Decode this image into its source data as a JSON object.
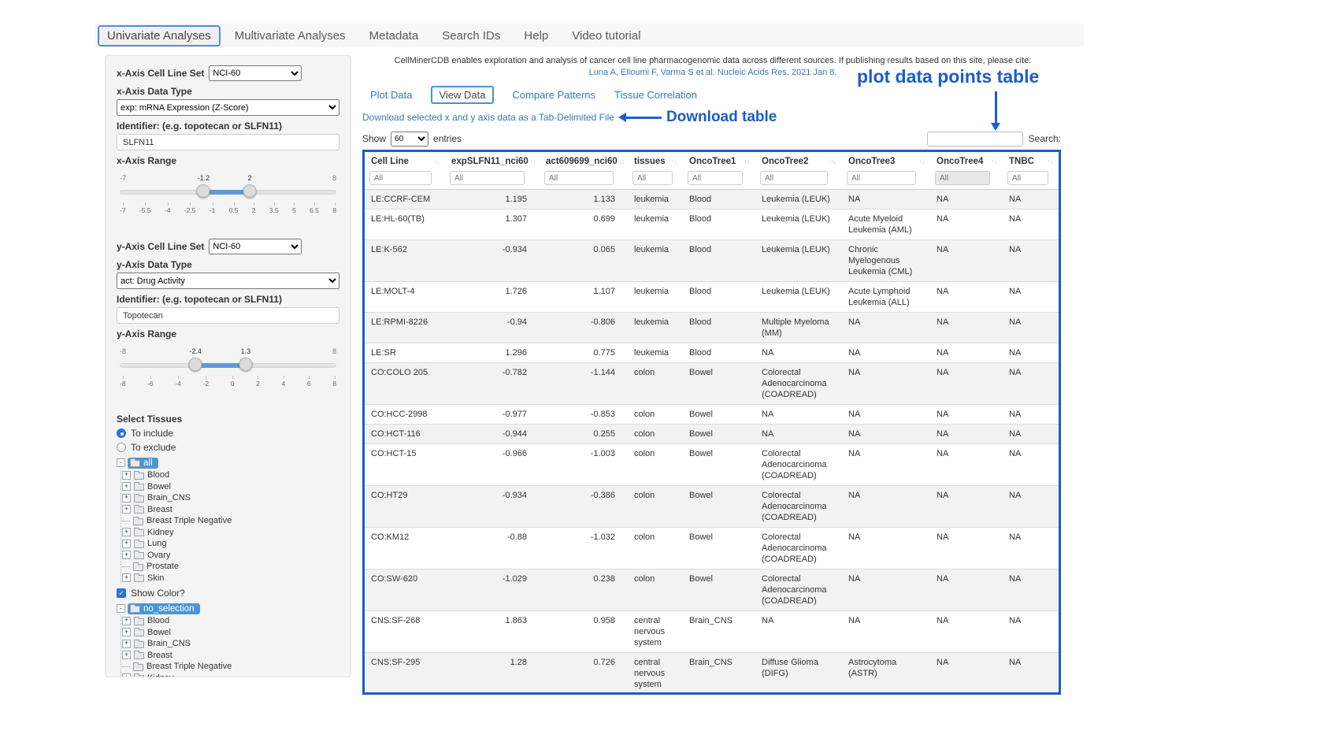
{
  "nav": {
    "tabs": [
      {
        "label": "Univariate Analyses",
        "active": true
      },
      {
        "label": "Multivariate Analyses",
        "active": false
      },
      {
        "label": "Metadata",
        "active": false
      },
      {
        "label": "Search IDs",
        "active": false
      },
      {
        "label": "Help",
        "active": false
      },
      {
        "label": "Video tutorial",
        "active": false
      }
    ]
  },
  "sidebar": {
    "x_axis": {
      "cell_line_set_label": "x-Axis Cell Line Set",
      "cell_line_set_value": "NCI-60",
      "data_type_label": "x-Axis Data Type",
      "data_type_value": "exp: mRNA Expression (Z-Score)",
      "identifier_label": "Identifier: (e.g. topotecan or SLFN11)",
      "identifier_value": "SLFN11",
      "range_label": "x-Axis Range",
      "min": -7,
      "max": 8,
      "from": -1.2,
      "to": 2,
      "ticks": [
        "-7",
        "-5.5",
        "-4",
        "-2.5",
        "-1",
        "0.5",
        "2",
        "3.5",
        "5",
        "6.5",
        "8"
      ]
    },
    "y_axis": {
      "cell_line_set_label": "y-Axis Cell Line Set",
      "cell_line_set_value": "NCI-60",
      "data_type_label": "y-Axis Data Type",
      "data_type_value": "act: Drug Activity",
      "identifier_label": "Identifier: (e.g. topotecan or SLFN11)",
      "identifier_value": "Topotecan",
      "range_label": "y-Axis Range",
      "min": -8,
      "max": 8,
      "from": -2.4,
      "to": 1.3,
      "ticks": [
        "-8",
        "-6",
        "-4",
        "-2",
        "0",
        "2",
        "4",
        "6",
        "8"
      ]
    },
    "tissues": {
      "label": "Select Tissues",
      "include_label": "To include",
      "exclude_label": "To exclude",
      "include_selected": true,
      "show_color_label": "Show Color?",
      "show_color_checked": true,
      "tree_all_root": "all",
      "tree_noselection_root": "no_selection",
      "items": [
        {
          "label": "Blood",
          "expandable": true
        },
        {
          "label": "Bowel",
          "expandable": true
        },
        {
          "label": "Brain_CNS",
          "expandable": true
        },
        {
          "label": "Breast",
          "expandable": true
        },
        {
          "label": "Breast Triple Negative",
          "expandable": false
        },
        {
          "label": "Kidney",
          "expandable": true
        },
        {
          "label": "Lung",
          "expandable": true
        },
        {
          "label": "Ovary",
          "expandable": true
        },
        {
          "label": "Prostate",
          "expandable": false
        },
        {
          "label": "Skin",
          "expandable": true
        }
      ]
    }
  },
  "main": {
    "citation_text": "CellMinerCDB enables exploration and analysis of cancer cell line pharmacogenomic data across different sources. If publishing results based on this site, please cite:",
    "citation_link": "Luna A, Elloumi F, Varma S et al. Nucleic Acids Res. 2021 Jan 8.",
    "tabs": [
      {
        "label": "Plot Data",
        "active": false
      },
      {
        "label": "View Data",
        "active": true
      },
      {
        "label": "Compare Patterns",
        "active": false
      },
      {
        "label": "Tissue Correlation",
        "active": false
      }
    ],
    "download_link": "Download selected x and y axis data as a Tab-Delimited File",
    "annotation_download": "Download table",
    "annotation_table": "plot data points table",
    "show_label": "Show",
    "entries_selected": "60",
    "entries_label": "entries",
    "search_label": "Search:",
    "table": {
      "filter_placeholder": "All",
      "numeric_columns": [
        1,
        2
      ],
      "columns": [
        "Cell Line",
        "expSLFN11_nci60",
        "act609699_nci60",
        "tissues",
        "OncoTree1",
        "OncoTree2",
        "OncoTree3",
        "OncoTree4",
        "TNBC"
      ],
      "rows": [
        [
          "LE:CCRF-CEM",
          "1.195",
          "1.133",
          "leukemia",
          "Blood",
          "Leukemia (LEUK)",
          "NA",
          "NA",
          "NA"
        ],
        [
          "LE:HL-60(TB)",
          "1.307",
          "0.699",
          "leukemia",
          "Blood",
          "Leukemia (LEUK)",
          "Acute Myeloid Leukemia (AML)",
          "NA",
          "NA"
        ],
        [
          "LE:K-562",
          "-0.934",
          "0.065",
          "leukemia",
          "Blood",
          "Leukemia (LEUK)",
          "Chronic Myelogenous Leukemia (CML)",
          "NA",
          "NA"
        ],
        [
          "LE:MOLT-4",
          "1.726",
          "1.107",
          "leukemia",
          "Blood",
          "Leukemia (LEUK)",
          "Acute Lymphoid Leukemia (ALL)",
          "NA",
          "NA"
        ],
        [
          "LE:RPMI-8226",
          "-0.94",
          "-0.806",
          "leukemia",
          "Blood",
          "Multiple Myeloma (MM)",
          "NA",
          "NA",
          "NA"
        ],
        [
          "LE:SR",
          "1.296",
          "0.775",
          "leukemia",
          "Blood",
          "NA",
          "NA",
          "NA",
          "NA"
        ],
        [
          "CO:COLO 205",
          "-0.782",
          "-1.144",
          "colon",
          "Bowel",
          "Colorectal Adenocarcinoma (COADREAD)",
          "NA",
          "NA",
          "NA"
        ],
        [
          "CO:HCC-2998",
          "-0.977",
          "-0.853",
          "colon",
          "Bowel",
          "NA",
          "NA",
          "NA",
          "NA"
        ],
        [
          "CO:HCT-116",
          "-0.944",
          "0.255",
          "colon",
          "Bowel",
          "NA",
          "NA",
          "NA",
          "NA"
        ],
        [
          "CO:HCT-15",
          "-0.966",
          "-1.003",
          "colon",
          "Bowel",
          "Colorectal Adenocarcinoma (COADREAD)",
          "NA",
          "NA",
          "NA"
        ],
        [
          "CO:HT29",
          "-0.934",
          "-0.386",
          "colon",
          "Bowel",
          "Colorectal Adenocarcinoma (COADREAD)",
          "NA",
          "NA",
          "NA"
        ],
        [
          "CO:KM12",
          "-0.88",
          "-1.032",
          "colon",
          "Bowel",
          "Colorectal Adenocarcinoma (COADREAD)",
          "NA",
          "NA",
          "NA"
        ],
        [
          "CO:SW-620",
          "-1.029",
          "0.238",
          "colon",
          "Bowel",
          "Colorectal Adenocarcinoma (COADREAD)",
          "NA",
          "NA",
          "NA"
        ],
        [
          "CNS:SF-268",
          "1.863",
          "0.958",
          "central nervous system",
          "Brain_CNS",
          "NA",
          "NA",
          "NA",
          "NA"
        ],
        [
          "CNS:SF-295",
          "1.28",
          "0.726",
          "central nervous system",
          "Brain_CNS",
          "Diffuse Glioma (DIFG)",
          "Astrocytoma (ASTR)",
          "NA",
          "NA"
        ]
      ]
    }
  },
  "colors": {
    "annotation_blue": "#1b5ec6",
    "link_blue": "#337ab7",
    "tree_selected_blue": "#4a97d2"
  }
}
